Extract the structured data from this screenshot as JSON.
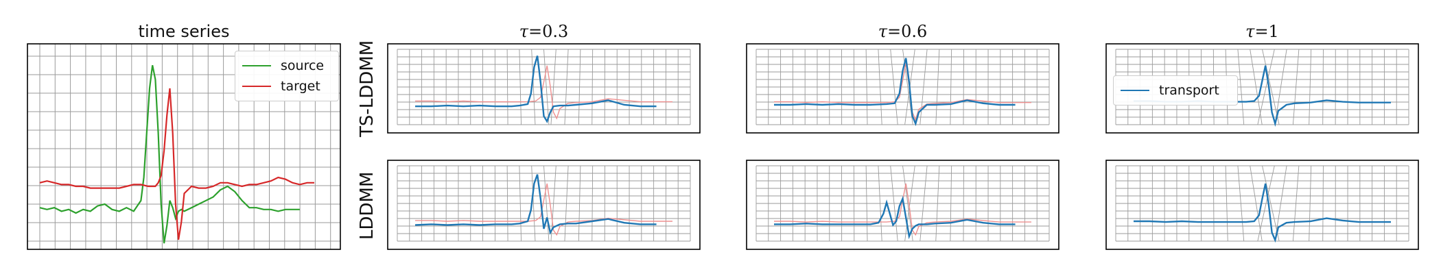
{
  "colors": {
    "source": "#2ca02c",
    "target": "#d62728",
    "transport": "#1f77b4",
    "target_faint": "#ee8f8f",
    "grid": "#9a9a9a",
    "frame": "#000000"
  },
  "chart_data": [
    {
      "id": "time-series",
      "type": "line",
      "title": "time series",
      "grid": true,
      "legend_placement": "top-right",
      "series": [
        {
          "name": "source",
          "color": "#2ca02c",
          "x": [
            0,
            5,
            10,
            15,
            20,
            25,
            30,
            35,
            40,
            45,
            50,
            55,
            60,
            65,
            70,
            72,
            74,
            76,
            78,
            80,
            82,
            84,
            86,
            88,
            90,
            92,
            94,
            96,
            98,
            100,
            105,
            110,
            115,
            120,
            125,
            130,
            135,
            140,
            145,
            150,
            155,
            160,
            165,
            170,
            175,
            180
          ],
          "y": [
            0.18,
            0.17,
            0.18,
            0.16,
            0.17,
            0.15,
            0.17,
            0.16,
            0.19,
            0.2,
            0.17,
            0.16,
            0.18,
            0.16,
            0.22,
            0.35,
            0.6,
            0.85,
            0.98,
            0.9,
            0.6,
            0.2,
            -0.02,
            0.08,
            0.22,
            0.18,
            0.12,
            0.16,
            0.17,
            0.16,
            0.18,
            0.2,
            0.22,
            0.24,
            0.28,
            0.3,
            0.27,
            0.22,
            0.18,
            0.18,
            0.17,
            0.17,
            0.16,
            0.17,
            0.17,
            0.17
          ]
        },
        {
          "name": "target",
          "color": "#d62728",
          "x": [
            0,
            5,
            10,
            15,
            20,
            25,
            30,
            35,
            40,
            45,
            50,
            55,
            60,
            65,
            70,
            75,
            80,
            82,
            84,
            86,
            88,
            90,
            92,
            94,
            96,
            98,
            100,
            105,
            110,
            115,
            120,
            125,
            130,
            135,
            140,
            145,
            150,
            155,
            160,
            165,
            170,
            175,
            180,
            185,
            190
          ],
          "y": [
            0.32,
            0.33,
            0.32,
            0.31,
            0.31,
            0.3,
            0.3,
            0.29,
            0.29,
            0.29,
            0.29,
            0.29,
            0.3,
            0.31,
            0.31,
            0.3,
            0.3,
            0.32,
            0.36,
            0.5,
            0.7,
            0.85,
            0.6,
            0.2,
            0.0,
            0.1,
            0.26,
            0.3,
            0.29,
            0.29,
            0.3,
            0.32,
            0.32,
            0.31,
            0.3,
            0.31,
            0.31,
            0.32,
            0.33,
            0.35,
            0.34,
            0.32,
            0.31,
            0.32,
            0.32
          ]
        }
      ]
    },
    {
      "id": "ts-lddmm-0.3",
      "type": "line",
      "title": "τ=0.3",
      "row_label": "TS-LDDMM",
      "tau": 0.3,
      "grid": "deformed",
      "series": [
        {
          "name": "transport",
          "color": "#1f77b4",
          "x": [
            0,
            10,
            20,
            30,
            40,
            50,
            60,
            65,
            70,
            72,
            74,
            76,
            78,
            80,
            82,
            84,
            86,
            90,
            95,
            100,
            110,
            120,
            130,
            140,
            150
          ],
          "y": [
            0.28,
            0.28,
            0.29,
            0.28,
            0.29,
            0.28,
            0.28,
            0.29,
            0.31,
            0.45,
            0.8,
            0.95,
            0.6,
            0.15,
            0.08,
            0.2,
            0.28,
            0.29,
            0.29,
            0.3,
            0.32,
            0.36,
            0.3,
            0.28,
            0.28
          ]
        },
        {
          "name": "target",
          "color": "#ee8f8f",
          "x": [
            0,
            10,
            20,
            30,
            40,
            50,
            60,
            70,
            75,
            78,
            80,
            82,
            84,
            86,
            88,
            90,
            95,
            100,
            110,
            120,
            130,
            140,
            150,
            160
          ],
          "y": [
            0.35,
            0.35,
            0.34,
            0.35,
            0.34,
            0.34,
            0.34,
            0.34,
            0.35,
            0.4,
            0.6,
            0.82,
            0.55,
            0.2,
            0.12,
            0.25,
            0.32,
            0.33,
            0.34,
            0.38,
            0.36,
            0.34,
            0.34,
            0.34
          ]
        }
      ]
    },
    {
      "id": "ts-lddmm-0.6",
      "type": "line",
      "title": "τ=0.6",
      "tau": 0.6,
      "grid": "deformed",
      "series": [
        {
          "name": "transport",
          "color": "#1f77b4",
          "x": [
            0,
            10,
            20,
            30,
            40,
            50,
            60,
            70,
            75,
            78,
            80,
            82,
            84,
            86,
            88,
            90,
            95,
            100,
            110,
            120,
            130,
            140,
            150
          ],
          "y": [
            0.3,
            0.3,
            0.31,
            0.3,
            0.31,
            0.3,
            0.3,
            0.31,
            0.32,
            0.45,
            0.75,
            0.92,
            0.6,
            0.15,
            0.05,
            0.2,
            0.3,
            0.3,
            0.31,
            0.36,
            0.32,
            0.3,
            0.3
          ]
        },
        {
          "name": "target",
          "color": "#ee8f8f",
          "x": [
            0,
            10,
            20,
            30,
            40,
            50,
            60,
            70,
            75,
            78,
            80,
            82,
            84,
            86,
            88,
            90,
            95,
            100,
            110,
            120,
            130,
            140,
            150,
            160
          ],
          "y": [
            0.34,
            0.34,
            0.33,
            0.34,
            0.33,
            0.33,
            0.33,
            0.33,
            0.34,
            0.4,
            0.62,
            0.85,
            0.55,
            0.2,
            0.1,
            0.24,
            0.31,
            0.32,
            0.33,
            0.37,
            0.35,
            0.33,
            0.33,
            0.33
          ]
        }
      ]
    },
    {
      "id": "ts-lddmm-1",
      "type": "line",
      "title": "τ=1",
      "tau": 1,
      "grid": "deformed",
      "legend_placement": "left",
      "series": [
        {
          "name": "transport",
          "color": "#1f77b4",
          "x": [
            0,
            10,
            20,
            30,
            40,
            50,
            60,
            70,
            75,
            78,
            80,
            82,
            84,
            86,
            88,
            90,
            95,
            100,
            110,
            120,
            130,
            140,
            150,
            160
          ],
          "y": [
            0.35,
            0.35,
            0.34,
            0.34,
            0.35,
            0.34,
            0.34,
            0.34,
            0.35,
            0.42,
            0.62,
            0.82,
            0.55,
            0.2,
            0.05,
            0.22,
            0.3,
            0.32,
            0.33,
            0.36,
            0.34,
            0.33,
            0.33,
            0.33
          ]
        }
      ]
    },
    {
      "id": "lddmm-0.3",
      "type": "line",
      "row_label": "LDDMM",
      "tau": 0.3,
      "grid": "deformed",
      "series": [
        {
          "name": "transport",
          "color": "#1f77b4",
          "x": [
            0,
            10,
            20,
            30,
            40,
            50,
            60,
            65,
            70,
            72,
            74,
            76,
            78,
            80,
            82,
            84,
            86,
            90,
            95,
            100,
            110,
            120,
            130,
            140,
            150
          ],
          "y": [
            0.25,
            0.26,
            0.25,
            0.26,
            0.25,
            0.26,
            0.26,
            0.27,
            0.3,
            0.45,
            0.8,
            0.92,
            0.6,
            0.2,
            0.35,
            0.15,
            0.22,
            0.26,
            0.27,
            0.27,
            0.3,
            0.33,
            0.28,
            0.26,
            0.26
          ]
        },
        {
          "name": "target",
          "color": "#ee8f8f",
          "x": [
            0,
            10,
            20,
            30,
            40,
            50,
            60,
            70,
            75,
            78,
            80,
            82,
            84,
            86,
            88,
            90,
            95,
            100,
            110,
            120,
            130,
            140,
            150,
            160
          ],
          "y": [
            0.31,
            0.31,
            0.3,
            0.31,
            0.3,
            0.3,
            0.3,
            0.3,
            0.31,
            0.36,
            0.58,
            0.8,
            0.52,
            0.18,
            0.12,
            0.23,
            0.29,
            0.3,
            0.31,
            0.34,
            0.32,
            0.3,
            0.3,
            0.3
          ]
        }
      ]
    },
    {
      "id": "lddmm-0.6",
      "type": "line",
      "tau": 0.6,
      "grid": "deformed",
      "series": [
        {
          "name": "transport",
          "color": "#1f77b4",
          "x": [
            0,
            10,
            20,
            30,
            40,
            50,
            60,
            65,
            68,
            70,
            72,
            74,
            76,
            78,
            80,
            82,
            84,
            86,
            88,
            90,
            95,
            100,
            110,
            120,
            130,
            140,
            150
          ],
          "y": [
            0.26,
            0.26,
            0.27,
            0.26,
            0.26,
            0.26,
            0.26,
            0.28,
            0.4,
            0.55,
            0.4,
            0.25,
            0.3,
            0.5,
            0.6,
            0.35,
            0.1,
            0.2,
            0.24,
            0.26,
            0.26,
            0.27,
            0.28,
            0.32,
            0.28,
            0.26,
            0.26
          ]
        },
        {
          "name": "target",
          "color": "#ee8f8f",
          "x": [
            0,
            10,
            20,
            30,
            40,
            50,
            60,
            70,
            75,
            78,
            80,
            82,
            84,
            86,
            88,
            90,
            95,
            100,
            110,
            120,
            130,
            140,
            150,
            160
          ],
          "y": [
            0.3,
            0.3,
            0.29,
            0.3,
            0.29,
            0.29,
            0.29,
            0.29,
            0.3,
            0.36,
            0.58,
            0.8,
            0.52,
            0.18,
            0.12,
            0.23,
            0.28,
            0.29,
            0.3,
            0.33,
            0.31,
            0.29,
            0.29,
            0.29
          ]
        }
      ]
    },
    {
      "id": "lddmm-1",
      "type": "line",
      "tau": 1,
      "grid": "deformed",
      "series": [
        {
          "name": "transport",
          "color": "#1f77b4",
          "x": [
            0,
            10,
            20,
            30,
            40,
            50,
            60,
            70,
            75,
            78,
            80,
            82,
            84,
            86,
            88,
            90,
            95,
            100,
            110,
            120,
            130,
            140,
            150,
            160
          ],
          "y": [
            0.3,
            0.3,
            0.29,
            0.3,
            0.29,
            0.29,
            0.29,
            0.29,
            0.3,
            0.38,
            0.6,
            0.8,
            0.52,
            0.15,
            0.05,
            0.22,
            0.28,
            0.29,
            0.3,
            0.34,
            0.31,
            0.29,
            0.29,
            0.29
          ]
        }
      ]
    }
  ],
  "row_labels": [
    "TS-LDDMM",
    "LDDMM"
  ],
  "legends": {
    "time_series": [
      "source",
      "target"
    ],
    "tau1": [
      "transport"
    ]
  }
}
